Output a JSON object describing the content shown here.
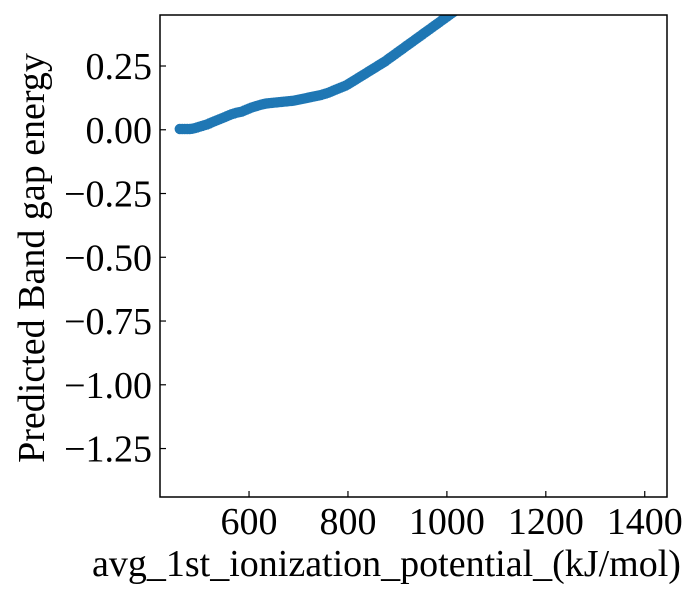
{
  "chart_data": {
    "type": "scatter",
    "title": "",
    "xlabel": "avg_1st_ionization_potential_(kJ/mol)",
    "ylabel": "Predicted Band gap energy",
    "xlim": [
      420,
      1445
    ],
    "ylim": [
      -1.44,
      0.45
    ],
    "xticks": [
      600,
      800,
      1000,
      1200,
      1400
    ],
    "xtick_labels": [
      "600",
      "800",
      "1000",
      "1200",
      "1400"
    ],
    "yticks": [
      0.25,
      0.0,
      -0.25,
      -0.5,
      -0.75,
      -1.0,
      -1.25
    ],
    "ytick_labels": [
      "0.25",
      "0.00",
      "−0.25",
      "−0.50",
      "−0.75",
      "−1.00",
      "−1.25"
    ],
    "grid": false,
    "series": [
      {
        "color": "#1f77b4",
        "points": [
          [
            460,
            0.003
          ],
          [
            465,
            0.003
          ],
          [
            470,
            0.003
          ],
          [
            475,
            0.003
          ],
          [
            480,
            0.003
          ],
          [
            485,
            0.004
          ],
          [
            490,
            0.006
          ],
          [
            495,
            0.009
          ],
          [
            500,
            0.012
          ],
          [
            505,
            0.015
          ],
          [
            510,
            0.018
          ],
          [
            515,
            0.021
          ],
          [
            520,
            0.025
          ],
          [
            525,
            0.029
          ],
          [
            530,
            0.033
          ],
          [
            535,
            0.037
          ],
          [
            540,
            0.041
          ],
          [
            545,
            0.045
          ],
          [
            550,
            0.049
          ],
          [
            555,
            0.053
          ],
          [
            560,
            0.057
          ],
          [
            565,
            0.061
          ],
          [
            570,
            0.064
          ],
          [
            575,
            0.067
          ],
          [
            580,
            0.069
          ],
          [
            585,
            0.071
          ],
          [
            590,
            0.075
          ],
          [
            595,
            0.079
          ],
          [
            600,
            0.083
          ],
          [
            605,
            0.087
          ],
          [
            610,
            0.09
          ],
          [
            615,
            0.093
          ],
          [
            620,
            0.096
          ],
          [
            625,
            0.099
          ],
          [
            630,
            0.101
          ],
          [
            635,
            0.103
          ],
          [
            640,
            0.104
          ],
          [
            645,
            0.105
          ],
          [
            650,
            0.106
          ],
          [
            655,
            0.107
          ],
          [
            660,
            0.108
          ],
          [
            665,
            0.109
          ],
          [
            670,
            0.11
          ],
          [
            675,
            0.111
          ],
          [
            680,
            0.112
          ],
          [
            685,
            0.113
          ],
          [
            690,
            0.114
          ],
          [
            695,
            0.116
          ],
          [
            700,
            0.118
          ],
          [
            705,
            0.12
          ],
          [
            710,
            0.122
          ],
          [
            715,
            0.124
          ],
          [
            720,
            0.126
          ],
          [
            725,
            0.128
          ],
          [
            730,
            0.13
          ],
          [
            735,
            0.132
          ],
          [
            740,
            0.134
          ],
          [
            745,
            0.136
          ],
          [
            750,
            0.139
          ],
          [
            755,
            0.142
          ],
          [
            760,
            0.145
          ],
          [
            765,
            0.149
          ],
          [
            770,
            0.153
          ],
          [
            775,
            0.157
          ],
          [
            780,
            0.161
          ],
          [
            785,
            0.165
          ],
          [
            790,
            0.169
          ],
          [
            795,
            0.173
          ],
          [
            800,
            0.178
          ],
          [
            805,
            0.184
          ],
          [
            810,
            0.19
          ],
          [
            815,
            0.196
          ],
          [
            820,
            0.202
          ],
          [
            825,
            0.208
          ],
          [
            830,
            0.214
          ],
          [
            835,
            0.22
          ],
          [
            840,
            0.226
          ],
          [
            845,
            0.232
          ],
          [
            850,
            0.238
          ],
          [
            855,
            0.244
          ],
          [
            860,
            0.25
          ],
          [
            865,
            0.256
          ],
          [
            870,
            0.262
          ],
          [
            875,
            0.268
          ],
          [
            880,
            0.275
          ],
          [
            885,
            0.282
          ],
          [
            890,
            0.289
          ],
          [
            895,
            0.296
          ],
          [
            900,
            0.303
          ],
          [
            905,
            0.31
          ],
          [
            910,
            0.317
          ],
          [
            915,
            0.324
          ],
          [
            920,
            0.331
          ],
          [
            925,
            0.338
          ],
          [
            930,
            0.345
          ],
          [
            935,
            0.352
          ],
          [
            940,
            0.359
          ],
          [
            945,
            0.366
          ],
          [
            950,
            0.373
          ],
          [
            955,
            0.38
          ],
          [
            960,
            0.387
          ],
          [
            965,
            0.394
          ],
          [
            970,
            0.401
          ],
          [
            975,
            0.408
          ],
          [
            980,
            0.415
          ],
          [
            985,
            0.422
          ],
          [
            990,
            0.429
          ],
          [
            995,
            0.436
          ],
          [
            1000,
            0.443
          ],
          [
            1005,
            0.45
          ],
          [
            1010,
            0.457
          ],
          [
            1015,
            0.464
          ],
          [
            1020,
            0.471
          ],
          [
            1025,
            0.478
          ],
          [
            1030,
            0.485
          ],
          [
            1035,
            0.492
          ],
          [
            1040,
            0.499
          ]
        ]
      }
    ]
  }
}
